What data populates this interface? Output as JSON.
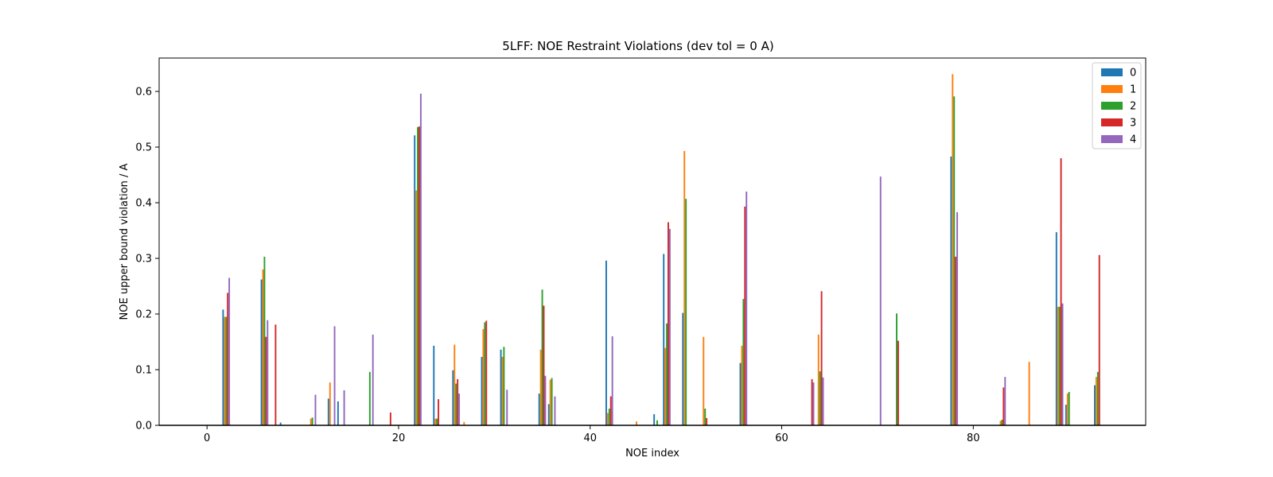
{
  "chart_data": {
    "type": "bar",
    "title": "5LFF: NOE Restraint Violations (dev tol = 0 A)",
    "xlabel": "NOE index",
    "ylabel": "NOE upper bound violation / A",
    "xlim": [
      -5,
      98
    ],
    "ylim": [
      0,
      0.66
    ],
    "xticks": [
      0,
      20,
      40,
      60,
      80
    ],
    "yticks": [
      0.0,
      0.1,
      0.2,
      0.3,
      0.4,
      0.5,
      0.6
    ],
    "ytick_labels": [
      "0.0",
      "0.1",
      "0.2",
      "0.3",
      "0.4",
      "0.5",
      "0.6"
    ],
    "grid": false,
    "legend_position": "top-right",
    "bar_width": 0.16,
    "series": [
      {
        "name": "0",
        "color": "#1f77b4",
        "points": [
          [
            2,
            0.208
          ],
          [
            6,
            0.262
          ],
          [
            8,
            0.005
          ],
          [
            13,
            0.048
          ],
          [
            14,
            0.043
          ],
          [
            22,
            0.521
          ],
          [
            24,
            0.143
          ],
          [
            26,
            0.099
          ],
          [
            29,
            0.123
          ],
          [
            31,
            0.136
          ],
          [
            35,
            0.057
          ],
          [
            36,
            0.038
          ],
          [
            42,
            0.296
          ],
          [
            47,
            0.02
          ],
          [
            48,
            0.308
          ],
          [
            50,
            0.202
          ],
          [
            56,
            0.112
          ],
          [
            78,
            0.483
          ],
          [
            89,
            0.347
          ],
          [
            90,
            0.037
          ],
          [
            93,
            0.072
          ]
        ]
      },
      {
        "name": "1",
        "color": "#ff7f0e",
        "points": [
          [
            2,
            0.195
          ],
          [
            6,
            0.28
          ],
          [
            11,
            0.012
          ],
          [
            13,
            0.077
          ],
          [
            22,
            0.422
          ],
          [
            24,
            0.012
          ],
          [
            26,
            0.145
          ],
          [
            27,
            0.006
          ],
          [
            29,
            0.173
          ],
          [
            31,
            0.123
          ],
          [
            35,
            0.136
          ],
          [
            36,
            0.082
          ],
          [
            42,
            0.022
          ],
          [
            45,
            0.007
          ],
          [
            48,
            0.139
          ],
          [
            50,
            0.493
          ],
          [
            52,
            0.159
          ],
          [
            56,
            0.143
          ],
          [
            64,
            0.163
          ],
          [
            78,
            0.631
          ],
          [
            83,
            0.008
          ],
          [
            86,
            0.114
          ],
          [
            89,
            0.213
          ],
          [
            90,
            0.057
          ],
          [
            93,
            0.087
          ]
        ]
      },
      {
        "name": "2",
        "color": "#2ca02c",
        "points": [
          [
            2,
            0.195
          ],
          [
            6,
            0.303
          ],
          [
            11,
            0.014
          ],
          [
            17,
            0.096
          ],
          [
            22,
            0.536
          ],
          [
            24,
            0.012
          ],
          [
            26,
            0.075
          ],
          [
            29,
            0.185
          ],
          [
            31,
            0.141
          ],
          [
            35,
            0.244
          ],
          [
            36,
            0.085
          ],
          [
            42,
            0.03
          ],
          [
            47,
            0.009
          ],
          [
            48,
            0.183
          ],
          [
            50,
            0.407
          ],
          [
            52,
            0.03
          ],
          [
            56,
            0.227
          ],
          [
            64,
            0.097
          ],
          [
            72,
            0.201
          ],
          [
            78,
            0.591
          ],
          [
            83,
            0.01
          ],
          [
            89,
            0.213
          ],
          [
            90,
            0.06
          ],
          [
            93,
            0.096
          ]
        ]
      },
      {
        "name": "3",
        "color": "#d62728",
        "points": [
          [
            2,
            0.238
          ],
          [
            6,
            0.159
          ],
          [
            7,
            0.181
          ],
          [
            19,
            0.023
          ],
          [
            22,
            0.537
          ],
          [
            24,
            0.047
          ],
          [
            26,
            0.083
          ],
          [
            29,
            0.188
          ],
          [
            35,
            0.215
          ],
          [
            42,
            0.052
          ],
          [
            48,
            0.365
          ],
          [
            52,
            0.013
          ],
          [
            56,
            0.393
          ],
          [
            63,
            0.083
          ],
          [
            64,
            0.241
          ],
          [
            72,
            0.152
          ],
          [
            78,
            0.303
          ],
          [
            83,
            0.068
          ],
          [
            89,
            0.48
          ],
          [
            93,
            0.306
          ]
        ]
      },
      {
        "name": "4",
        "color": "#9467bd",
        "points": [
          [
            2,
            0.265
          ],
          [
            6,
            0.189
          ],
          [
            11,
            0.055
          ],
          [
            13,
            0.178
          ],
          [
            14,
            0.063
          ],
          [
            17,
            0.163
          ],
          [
            22,
            0.596
          ],
          [
            26,
            0.057
          ],
          [
            31,
            0.064
          ],
          [
            35,
            0.089
          ],
          [
            36,
            0.052
          ],
          [
            42,
            0.16
          ],
          [
            48,
            0.353
          ],
          [
            56,
            0.42
          ],
          [
            63,
            0.077
          ],
          [
            64,
            0.086
          ],
          [
            70,
            0.447
          ],
          [
            78,
            0.383
          ],
          [
            83,
            0.087
          ],
          [
            89,
            0.219
          ]
        ]
      }
    ]
  }
}
